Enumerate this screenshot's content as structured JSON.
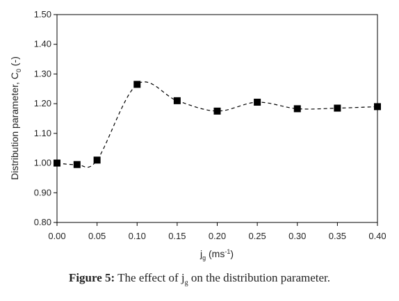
{
  "chart_data": {
    "type": "line",
    "line_style": "dashed-smooth",
    "marker": "square",
    "color": "#000000",
    "grid": false,
    "x": [
      0.0,
      0.025,
      0.05,
      0.1,
      0.15,
      0.2,
      0.25,
      0.3,
      0.35,
      0.4
    ],
    "y": [
      1.0,
      0.995,
      1.01,
      1.265,
      1.21,
      1.175,
      1.205,
      1.183,
      1.185,
      1.19
    ],
    "xlim": [
      0.0,
      0.4
    ],
    "ylim": [
      0.8,
      1.5
    ],
    "xticks": [
      "0.00",
      "0.05",
      "0.10",
      "0.15",
      "0.20",
      "0.25",
      "0.30",
      "0.35",
      "0.40"
    ],
    "yticks": [
      "0.80",
      "0.90",
      "1.00",
      "1.10",
      "1.20",
      "1.30",
      "1.40",
      "1.50"
    ],
    "xlabel": {
      "main": "j",
      "sub": "g",
      "rest": " (ms",
      "sup": "-1",
      "end": ")"
    },
    "ylabel": {
      "main": "Distribution parameter, C",
      "sub": "0",
      "rest": " (-)"
    }
  },
  "caption": {
    "bold": "Figure 5:",
    "text1": " The effect of j",
    "sub": "g",
    "text2": " on the distribution parameter."
  }
}
